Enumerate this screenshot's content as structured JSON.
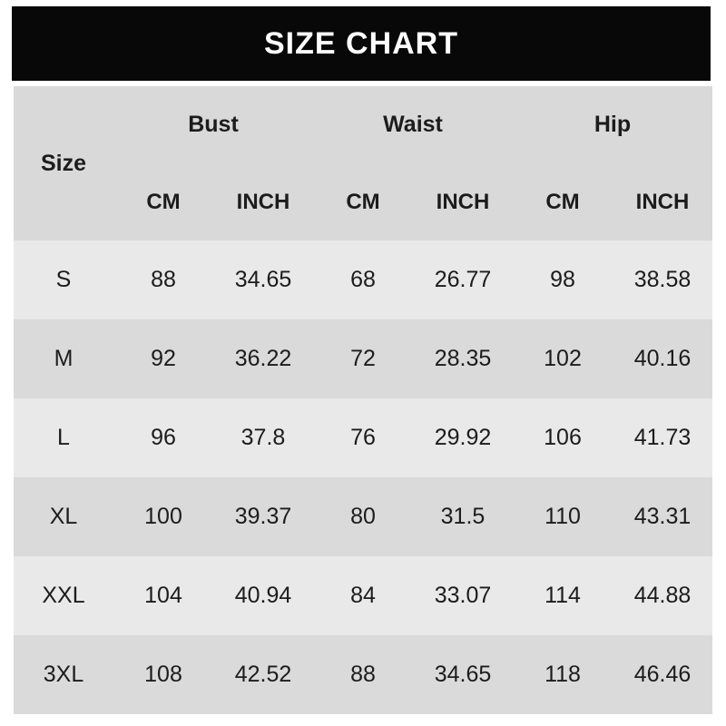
{
  "title": "SIZE CHART",
  "table": {
    "size_label": "Size",
    "groups": [
      "Bust",
      "Waist",
      "Hip"
    ],
    "units": {
      "cm": "CM",
      "inch": "INCH"
    },
    "rows": [
      {
        "size": "S",
        "bust_cm": "88",
        "bust_inch": "34.65",
        "waist_cm": "68",
        "waist_inch": "26.77",
        "hip_cm": "98",
        "hip_inch": "38.58"
      },
      {
        "size": "M",
        "bust_cm": "92",
        "bust_inch": "36.22",
        "waist_cm": "72",
        "waist_inch": "28.35",
        "hip_cm": "102",
        "hip_inch": "40.16"
      },
      {
        "size": "L",
        "bust_cm": "96",
        "bust_inch": "37.8",
        "waist_cm": "76",
        "waist_inch": "29.92",
        "hip_cm": "106",
        "hip_inch": "41.73"
      },
      {
        "size": "XL",
        "bust_cm": "100",
        "bust_inch": "39.37",
        "waist_cm": "80",
        "waist_inch": "31.5",
        "hip_cm": "110",
        "hip_inch": "43.31"
      },
      {
        "size": "XXL",
        "bust_cm": "104",
        "bust_inch": "40.94",
        "waist_cm": "84",
        "waist_inch": "33.07",
        "hip_cm": "114",
        "hip_inch": "44.88"
      },
      {
        "size": "3XL",
        "bust_cm": "108",
        "bust_inch": "42.52",
        "waist_cm": "88",
        "waist_inch": "34.65",
        "hip_cm": "118",
        "hip_inch": "46.46"
      }
    ]
  },
  "chart_data": {
    "type": "table",
    "title": "SIZE CHART",
    "columns": [
      "Size",
      "Bust CM",
      "Bust INCH",
      "Waist CM",
      "Waist INCH",
      "Hip CM",
      "Hip INCH"
    ],
    "rows": [
      [
        "S",
        88,
        34.65,
        68,
        26.77,
        98,
        38.58
      ],
      [
        "M",
        92,
        36.22,
        72,
        28.35,
        102,
        40.16
      ],
      [
        "L",
        96,
        37.8,
        76,
        29.92,
        106,
        41.73
      ],
      [
        "XL",
        100,
        39.37,
        80,
        31.5,
        110,
        43.31
      ],
      [
        "XXL",
        104,
        40.94,
        84,
        33.07,
        114,
        44.88
      ],
      [
        "3XL",
        108,
        42.52,
        88,
        34.65,
        118,
        46.46
      ]
    ]
  },
  "colors": {
    "page_bg": "#ffffff",
    "title_bg": "#080808",
    "title_text": "#ffffff",
    "header_bg": "#d9d9d9",
    "row_light": "#e9e9e9",
    "row_dark": "#dadada",
    "text": "#1c1c1c"
  }
}
